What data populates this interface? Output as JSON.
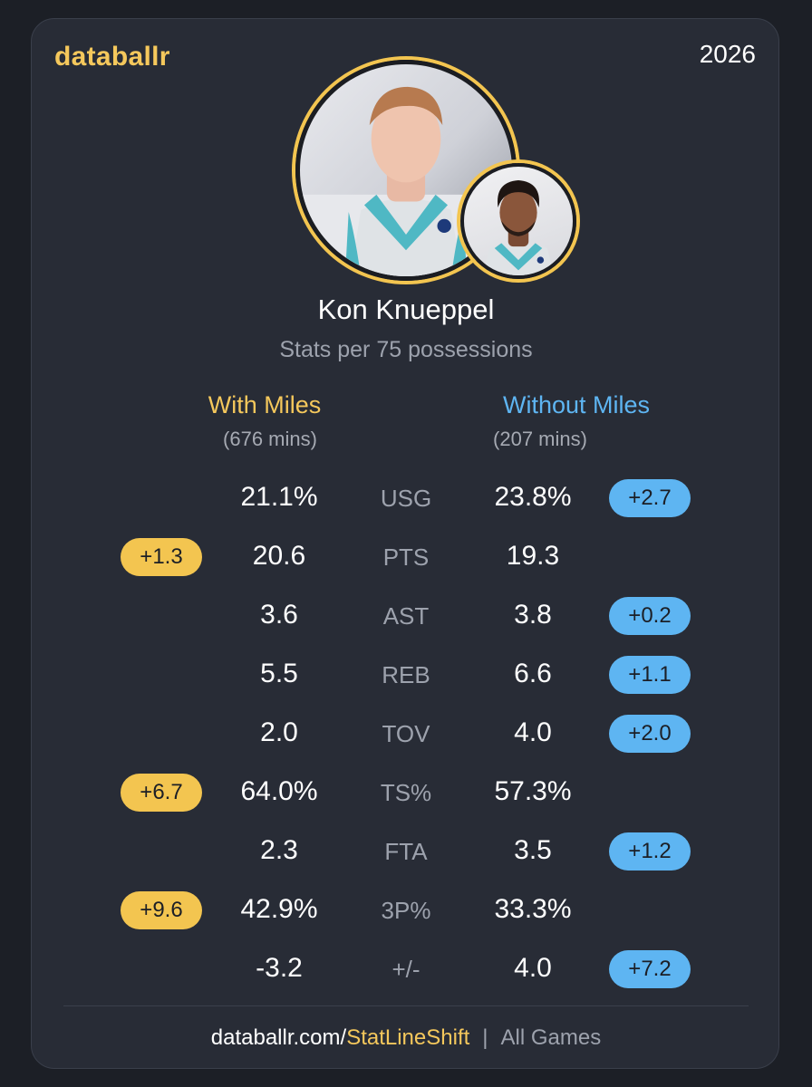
{
  "header": {
    "brand": "databallr",
    "year": "2026"
  },
  "player": {
    "name": "Kon Knueppel",
    "subtitle": "Stats per 75 possessions"
  },
  "columns": {
    "with": {
      "label": "With Miles",
      "minutes": "(676 mins)"
    },
    "without": {
      "label": "Without Miles",
      "minutes": "(207 mins)"
    }
  },
  "rows": [
    {
      "stat": "USG",
      "with": "21.1%",
      "without": "23.8%",
      "diff_with": "",
      "diff_without": "+2.7"
    },
    {
      "stat": "PTS",
      "with": "20.6",
      "without": "19.3",
      "diff_with": "+1.3",
      "diff_without": ""
    },
    {
      "stat": "AST",
      "with": "3.6",
      "without": "3.8",
      "diff_with": "",
      "diff_without": "+0.2"
    },
    {
      "stat": "REB",
      "with": "5.5",
      "without": "6.6",
      "diff_with": "",
      "diff_without": "+1.1"
    },
    {
      "stat": "TOV",
      "with": "2.0",
      "without": "4.0",
      "diff_with": "",
      "diff_without": "+2.0"
    },
    {
      "stat": "TS%",
      "with": "64.0%",
      "without": "57.3%",
      "diff_with": "+6.7",
      "diff_without": ""
    },
    {
      "stat": "FTA",
      "with": "2.3",
      "without": "3.5",
      "diff_with": "",
      "diff_without": "+1.2"
    },
    {
      "stat": "3P%",
      "with": "42.9%",
      "without": "33.3%",
      "diff_with": "+9.6",
      "diff_without": ""
    },
    {
      "stat": "+/-",
      "with": "-3.2",
      "without": "4.0",
      "diff_with": "",
      "diff_without": "+7.2"
    }
  ],
  "footer": {
    "site": "databallr.com/",
    "path": "StatLineShift",
    "separator": "|",
    "scope": "All Games"
  },
  "colors": {
    "with_accent": "#f5c85c",
    "without_accent": "#5eb5f2",
    "card_bg": "#282c36",
    "page_bg": "#1c1f26"
  }
}
